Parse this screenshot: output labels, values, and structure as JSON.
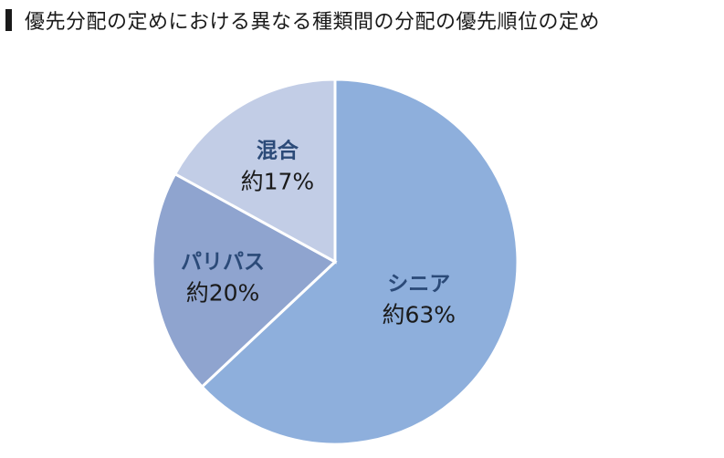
{
  "chart_data": {
    "type": "pie",
    "title": "優先分配の定めにおける異なる種類間の分配の優先順位の定め",
    "slices": [
      {
        "name": "シニア",
        "value": 63,
        "value_label": "約63%",
        "color": "#8eafdc"
      },
      {
        "name": "パリパス",
        "value": 20,
        "value_label": "約20%",
        "color": "#8fa4cf"
      },
      {
        "name": "混合",
        "value": 17,
        "value_label": "約17%",
        "color": "#c2cde6"
      }
    ],
    "start": "12 o'clock",
    "direction": "clockwise",
    "legend": "none"
  }
}
